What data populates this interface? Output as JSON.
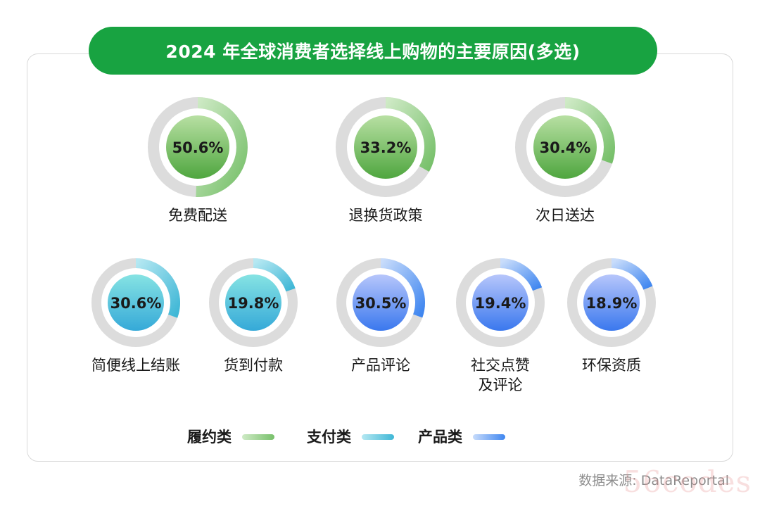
{
  "title": "2024 年全球消费者选择线上购物的主要原因(多选)",
  "source": "数据来源: DataReportal",
  "watermark": "56codes",
  "colors": {
    "title_bg": "#18a341",
    "track": "#dcdcdc",
    "fulfillment": {
      "arc": "#77c06a",
      "arc_light": "#cfeac6",
      "center_top": "#b8e0a3",
      "center_bottom": "#4fa63f"
    },
    "payment": {
      "arc": "#3fb7d6",
      "arc_light": "#b5e8f2",
      "center_top": "#86e3e3",
      "center_bottom": "#35a9d8"
    },
    "product": {
      "arc": "#3f86f0",
      "arc_light": "#c8dcfb",
      "center_top": "#b7c6fb",
      "center_bottom": "#3a78ee"
    }
  },
  "chart_data": {
    "type": "donut",
    "title": "2024 年全球消费者选择线上购物的主要原因(多选)",
    "unit": "%",
    "items": [
      {
        "label": "免费配送",
        "value": 50.6,
        "display": "50.6%",
        "category": "fulfillment"
      },
      {
        "label": "退换货政策",
        "value": 33.2,
        "display": "33.2%",
        "category": "fulfillment"
      },
      {
        "label": "次日送达",
        "value": 30.4,
        "display": "30.4%",
        "category": "fulfillment"
      },
      {
        "label": "简便线上结账",
        "value": 30.6,
        "display": "30.6%",
        "category": "payment"
      },
      {
        "label": "货到付款",
        "value": 19.8,
        "display": "19.8%",
        "category": "payment"
      },
      {
        "label": "产品评论",
        "value": 30.5,
        "display": "30.5%",
        "category": "product"
      },
      {
        "label": "社交点赞及评论",
        "label_lines": [
          "社交点赞",
          "及评论"
        ],
        "value": 19.4,
        "display": "19.4%",
        "category": "product"
      },
      {
        "label": "环保资质",
        "value": 18.9,
        "display": "18.9%",
        "category": "product"
      }
    ],
    "legend": [
      {
        "key": "fulfillment",
        "label": "履约类"
      },
      {
        "key": "payment",
        "label": "支付类"
      },
      {
        "key": "product",
        "label": "产品类"
      }
    ],
    "legend_position": "bottom-center"
  }
}
